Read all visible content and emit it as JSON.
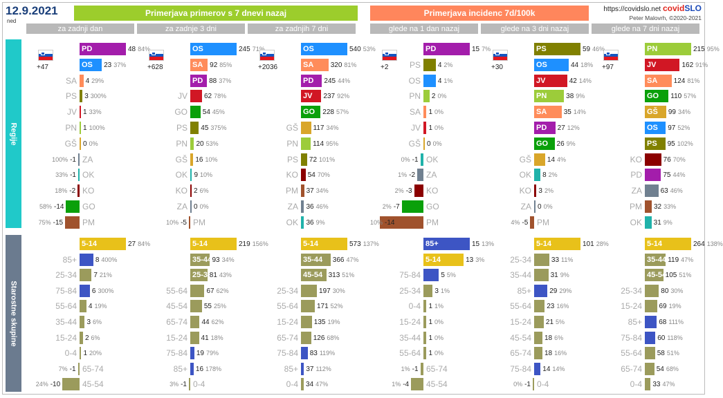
{
  "header": {
    "date": "12.9.2021",
    "day": "ned",
    "title_left": "Primerjava primerov s 7 dnevi nazaj",
    "title_right": "Primerjava incidenc 7d/100k",
    "site": "https://covidslo.net",
    "brand_a": "covid",
    "brand_b": "SLO",
    "author": "Peter Malovrh, ©2020-2021"
  },
  "sections": {
    "regions": "Regije",
    "ages": "Starostne skupine"
  },
  "columns": [
    "za zadnji dan",
    "za zadnje 3 dni",
    "za zadnjih 7 dni",
    "glede na 1 dan nazaj",
    "glede na 3 dni nazaj",
    "glede na 7 dni nazaj"
  ],
  "colors": {
    "PD": "#a31dab",
    "OS": "#1e90ff",
    "SA": "#ff8c5a",
    "PS": "#808000",
    "JV": "#d11724",
    "PN": "#9ccc3a",
    "GŠ": "#d9a62a",
    "ZA": "#708090",
    "OK": "#20b2aa",
    "KO": "#8b0000",
    "GO": "#0aa00a",
    "PM": "#a0522d",
    "age_pos": "#e8c11a",
    "age_85": "#3d55c4",
    "age_2": "#9b9b5c",
    "age_3": "#4a55b0"
  },
  "chart_data": [
    {
      "type": "bar",
      "panel": "regions",
      "column": "za zadnji dan",
      "total": "+47",
      "rows": [
        {
          "label": "PD",
          "value": 48,
          "pct": "84%"
        },
        {
          "label": "OS",
          "value": 23,
          "pct": "37%"
        },
        {
          "label": "SA",
          "value": 4,
          "pct": "29%"
        },
        {
          "label": "PS",
          "value": 3,
          "pct": "300%"
        },
        {
          "label": "JV",
          "value": 1,
          "pct": "33%"
        },
        {
          "label": "PN",
          "value": 1,
          "pct": "100%"
        },
        {
          "label": "GŠ",
          "value": 0,
          "pct": "0%"
        },
        {
          "label": "ZA",
          "value": -1,
          "pct": "100%"
        },
        {
          "label": "OK",
          "value": -1,
          "pct": "33%"
        },
        {
          "label": "KO",
          "value": -2,
          "pct": "18%"
        },
        {
          "label": "GO",
          "value": -14,
          "pct": "58%"
        },
        {
          "label": "PM",
          "value": -15,
          "pct": "75%"
        }
      ]
    },
    {
      "type": "bar",
      "panel": "regions",
      "column": "za zadnje 3 dni",
      "total": "+628",
      "rows": [
        {
          "label": "OS",
          "value": 245,
          "pct": "71%"
        },
        {
          "label": "SA",
          "value": 92,
          "pct": "85%"
        },
        {
          "label": "PD",
          "value": 88,
          "pct": "37%"
        },
        {
          "label": "JV",
          "value": 62,
          "pct": "78%"
        },
        {
          "label": "GO",
          "value": 54,
          "pct": "45%"
        },
        {
          "label": "PS",
          "value": 45,
          "pct": "375%"
        },
        {
          "label": "PN",
          "value": 20,
          "pct": "53%"
        },
        {
          "label": "GŠ",
          "value": 16,
          "pct": "10%"
        },
        {
          "label": "OK",
          "value": 9,
          "pct": "10%"
        },
        {
          "label": "KO",
          "value": 2,
          "pct": "6%"
        },
        {
          "label": "ZA",
          "value": 0,
          "pct": "0%"
        },
        {
          "label": "PM",
          "value": -5,
          "pct": "10%"
        }
      ]
    },
    {
      "type": "bar",
      "panel": "regions",
      "column": "za zadnjih 7 dni",
      "total": "+2036",
      "rows": [
        {
          "label": "OS",
          "value": 540,
          "pct": "53%"
        },
        {
          "label": "SA",
          "value": 320,
          "pct": "81%"
        },
        {
          "label": "PD",
          "value": 245,
          "pct": "44%"
        },
        {
          "label": "JV",
          "value": 237,
          "pct": "92%"
        },
        {
          "label": "GO",
          "value": 228,
          "pct": "57%"
        },
        {
          "label": "GŠ",
          "value": 117,
          "pct": "34%"
        },
        {
          "label": "PN",
          "value": 114,
          "pct": "95%"
        },
        {
          "label": "PS",
          "value": 72,
          "pct": "101%"
        },
        {
          "label": "KO",
          "value": 54,
          "pct": "70%"
        },
        {
          "label": "PM",
          "value": 37,
          "pct": "34%"
        },
        {
          "label": "ZA",
          "value": 36,
          "pct": "46%"
        },
        {
          "label": "OK",
          "value": 36,
          "pct": "9%"
        }
      ]
    },
    {
      "type": "bar",
      "panel": "regions",
      "column": "glede na 1 dan nazaj",
      "total": "+2",
      "rows": [
        {
          "label": "PD",
          "value": 15,
          "pct": "7%"
        },
        {
          "label": "PS",
          "value": 4,
          "pct": "2%"
        },
        {
          "label": "OS",
          "value": 4,
          "pct": "1%"
        },
        {
          "label": "PN",
          "value": 2,
          "pct": "0%"
        },
        {
          "label": "SA",
          "value": 1,
          "pct": "0%"
        },
        {
          "label": "JV",
          "value": 1,
          "pct": "0%"
        },
        {
          "label": "GŠ",
          "value": 0,
          "pct": "0%"
        },
        {
          "label": "OK",
          "value": -1,
          "pct": "0%"
        },
        {
          "label": "ZA",
          "value": -2,
          "pct": "1%"
        },
        {
          "label": "KO",
          "value": -3,
          "pct": "2%"
        },
        {
          "label": "GO",
          "value": -7,
          "pct": "2%"
        },
        {
          "label": "PM",
          "value": -14,
          "pct": "10%"
        }
      ]
    },
    {
      "type": "bar",
      "panel": "regions",
      "column": "glede na 3 dni nazaj",
      "total": "+30",
      "rows": [
        {
          "label": "PS",
          "value": 59,
          "pct": "46%"
        },
        {
          "label": "OS",
          "value": 44,
          "pct": "18%"
        },
        {
          "label": "JV",
          "value": 42,
          "pct": "14%"
        },
        {
          "label": "PN",
          "value": 38,
          "pct": "9%"
        },
        {
          "label": "SA",
          "value": 35,
          "pct": "14%"
        },
        {
          "label": "PD",
          "value": 27,
          "pct": "12%"
        },
        {
          "label": "GO",
          "value": 26,
          "pct": "9%"
        },
        {
          "label": "GŠ",
          "value": 14,
          "pct": "4%"
        },
        {
          "label": "OK",
          "value": 8,
          "pct": "2%"
        },
        {
          "label": "KO",
          "value": 3,
          "pct": "2%"
        },
        {
          "label": "ZA",
          "value": 0,
          "pct": "0%"
        },
        {
          "label": "PM",
          "value": -5,
          "pct": "4%"
        }
      ]
    },
    {
      "type": "bar",
      "panel": "regions",
      "column": "glede na 7 dni nazaj",
      "total": "+97",
      "rows": [
        {
          "label": "PN",
          "value": 215,
          "pct": "95%"
        },
        {
          "label": "JV",
          "value": 162,
          "pct": "91%"
        },
        {
          "label": "SA",
          "value": 124,
          "pct": "81%"
        },
        {
          "label": "GO",
          "value": 110,
          "pct": "57%"
        },
        {
          "label": "GŠ",
          "value": 99,
          "pct": "34%"
        },
        {
          "label": "OS",
          "value": 97,
          "pct": "52%"
        },
        {
          "label": "PS",
          "value": 95,
          "pct": "102%"
        },
        {
          "label": "KO",
          "value": 76,
          "pct": "70%"
        },
        {
          "label": "PD",
          "value": 75,
          "pct": "44%"
        },
        {
          "label": "ZA",
          "value": 63,
          "pct": "46%"
        },
        {
          "label": "PM",
          "value": 32,
          "pct": "33%"
        },
        {
          "label": "OK",
          "value": 31,
          "pct": "9%"
        }
      ]
    },
    {
      "type": "bar",
      "panel": "ages",
      "column": "za zadnji dan",
      "rows": [
        {
          "label": "5-14",
          "value": 27,
          "pct": "84%"
        },
        {
          "label": "85+",
          "value": 8,
          "pct": "400%"
        },
        {
          "label": "25-34",
          "value": 7,
          "pct": "21%"
        },
        {
          "label": "75-84",
          "value": 6,
          "pct": "300%"
        },
        {
          "label": "55-64",
          "value": 4,
          "pct": "19%"
        },
        {
          "label": "35-44",
          "value": 3,
          "pct": "6%"
        },
        {
          "label": "15-24",
          "value": 2,
          "pct": "6%"
        },
        {
          "label": "0-4",
          "value": 1,
          "pct": "20%"
        },
        {
          "label": "65-74",
          "value": -1,
          "pct": "7%"
        },
        {
          "label": "45-54",
          "value": -10,
          "pct": "24%"
        }
      ]
    },
    {
      "type": "bar",
      "panel": "ages",
      "column": "za zadnje 3 dni",
      "rows": [
        {
          "label": "5-14",
          "value": 219,
          "pct": "156%"
        },
        {
          "label": "35-44",
          "value": 93,
          "pct": "34%"
        },
        {
          "label": "25-34",
          "value": 81,
          "pct": "43%"
        },
        {
          "label": "55-64",
          "value": 67,
          "pct": "62%"
        },
        {
          "label": "45-54",
          "value": 55,
          "pct": "25%"
        },
        {
          "label": "65-74",
          "value": 44,
          "pct": "62%"
        },
        {
          "label": "15-24",
          "value": 41,
          "pct": "18%"
        },
        {
          "label": "75-84",
          "value": 19,
          "pct": "79%"
        },
        {
          "label": "85+",
          "value": 16,
          "pct": "178%"
        },
        {
          "label": "0-4",
          "value": -1,
          "pct": "3%"
        }
      ]
    },
    {
      "type": "bar",
      "panel": "ages",
      "column": "za zadnjih 7 dni",
      "rows": [
        {
          "label": "5-14",
          "value": 573,
          "pct": "137%"
        },
        {
          "label": "35-44",
          "value": 366,
          "pct": "47%"
        },
        {
          "label": "45-54",
          "value": 313,
          "pct": "51%"
        },
        {
          "label": "25-34",
          "value": 197,
          "pct": "30%"
        },
        {
          "label": "55-64",
          "value": 171,
          "pct": "52%"
        },
        {
          "label": "15-24",
          "value": 135,
          "pct": "19%"
        },
        {
          "label": "65-74",
          "value": 126,
          "pct": "68%"
        },
        {
          "label": "75-84",
          "value": 83,
          "pct": "119%"
        },
        {
          "label": "85+",
          "value": 37,
          "pct": "112%"
        },
        {
          "label": "0-4",
          "value": 34,
          "pct": "47%"
        }
      ]
    },
    {
      "type": "bar",
      "panel": "ages",
      "column": "glede na 1 dan nazaj",
      "rows": [
        {
          "label": "85+",
          "value": 15,
          "pct": "13%"
        },
        {
          "label": "5-14",
          "value": 13,
          "pct": "3%"
        },
        {
          "label": "75-84",
          "value": 5,
          "pct": "5%"
        },
        {
          "label": "25-34",
          "value": 3,
          "pct": "1%"
        },
        {
          "label": "0-4",
          "value": 1,
          "pct": "1%"
        },
        {
          "label": "15-24",
          "value": 1,
          "pct": "0%"
        },
        {
          "label": "35-44",
          "value": 1,
          "pct": "0%"
        },
        {
          "label": "55-64",
          "value": 1,
          "pct": "0%"
        },
        {
          "label": "65-74",
          "value": -1,
          "pct": "1%"
        },
        {
          "label": "45-54",
          "value": -4,
          "pct": "1%"
        }
      ]
    },
    {
      "type": "bar",
      "panel": "ages",
      "column": "glede na 3 dni nazaj",
      "rows": [
        {
          "label": "5-14",
          "value": 101,
          "pct": "28%"
        },
        {
          "label": "25-34",
          "value": 33,
          "pct": "11%"
        },
        {
          "label": "35-44",
          "value": 31,
          "pct": "9%"
        },
        {
          "label": "85+",
          "value": 29,
          "pct": "29%"
        },
        {
          "label": "55-64",
          "value": 23,
          "pct": "16%"
        },
        {
          "label": "15-24",
          "value": 21,
          "pct": "5%"
        },
        {
          "label": "45-54",
          "value": 18,
          "pct": "6%"
        },
        {
          "label": "65-74",
          "value": 18,
          "pct": "16%"
        },
        {
          "label": "75-84",
          "value": 14,
          "pct": "14%"
        },
        {
          "label": "0-4",
          "value": -1,
          "pct": "0%"
        }
      ]
    },
    {
      "type": "bar",
      "panel": "ages",
      "column": "glede na 7 dni nazaj",
      "rows": [
        {
          "label": "5-14",
          "value": 264,
          "pct": "138%"
        },
        {
          "label": "35-44",
          "value": 119,
          "pct": "47%"
        },
        {
          "label": "45-54",
          "value": 105,
          "pct": "51%"
        },
        {
          "label": "25-34",
          "value": 80,
          "pct": "30%"
        },
        {
          "label": "15-24",
          "value": 69,
          "pct": "19%"
        },
        {
          "label": "85+",
          "value": 68,
          "pct": "111%"
        },
        {
          "label": "75-84",
          "value": 60,
          "pct": "118%"
        },
        {
          "label": "55-64",
          "value": 58,
          "pct": "51%"
        },
        {
          "label": "65-74",
          "value": 54,
          "pct": "68%"
        },
        {
          "label": "0-4",
          "value": 33,
          "pct": "47%"
        }
      ]
    }
  ]
}
